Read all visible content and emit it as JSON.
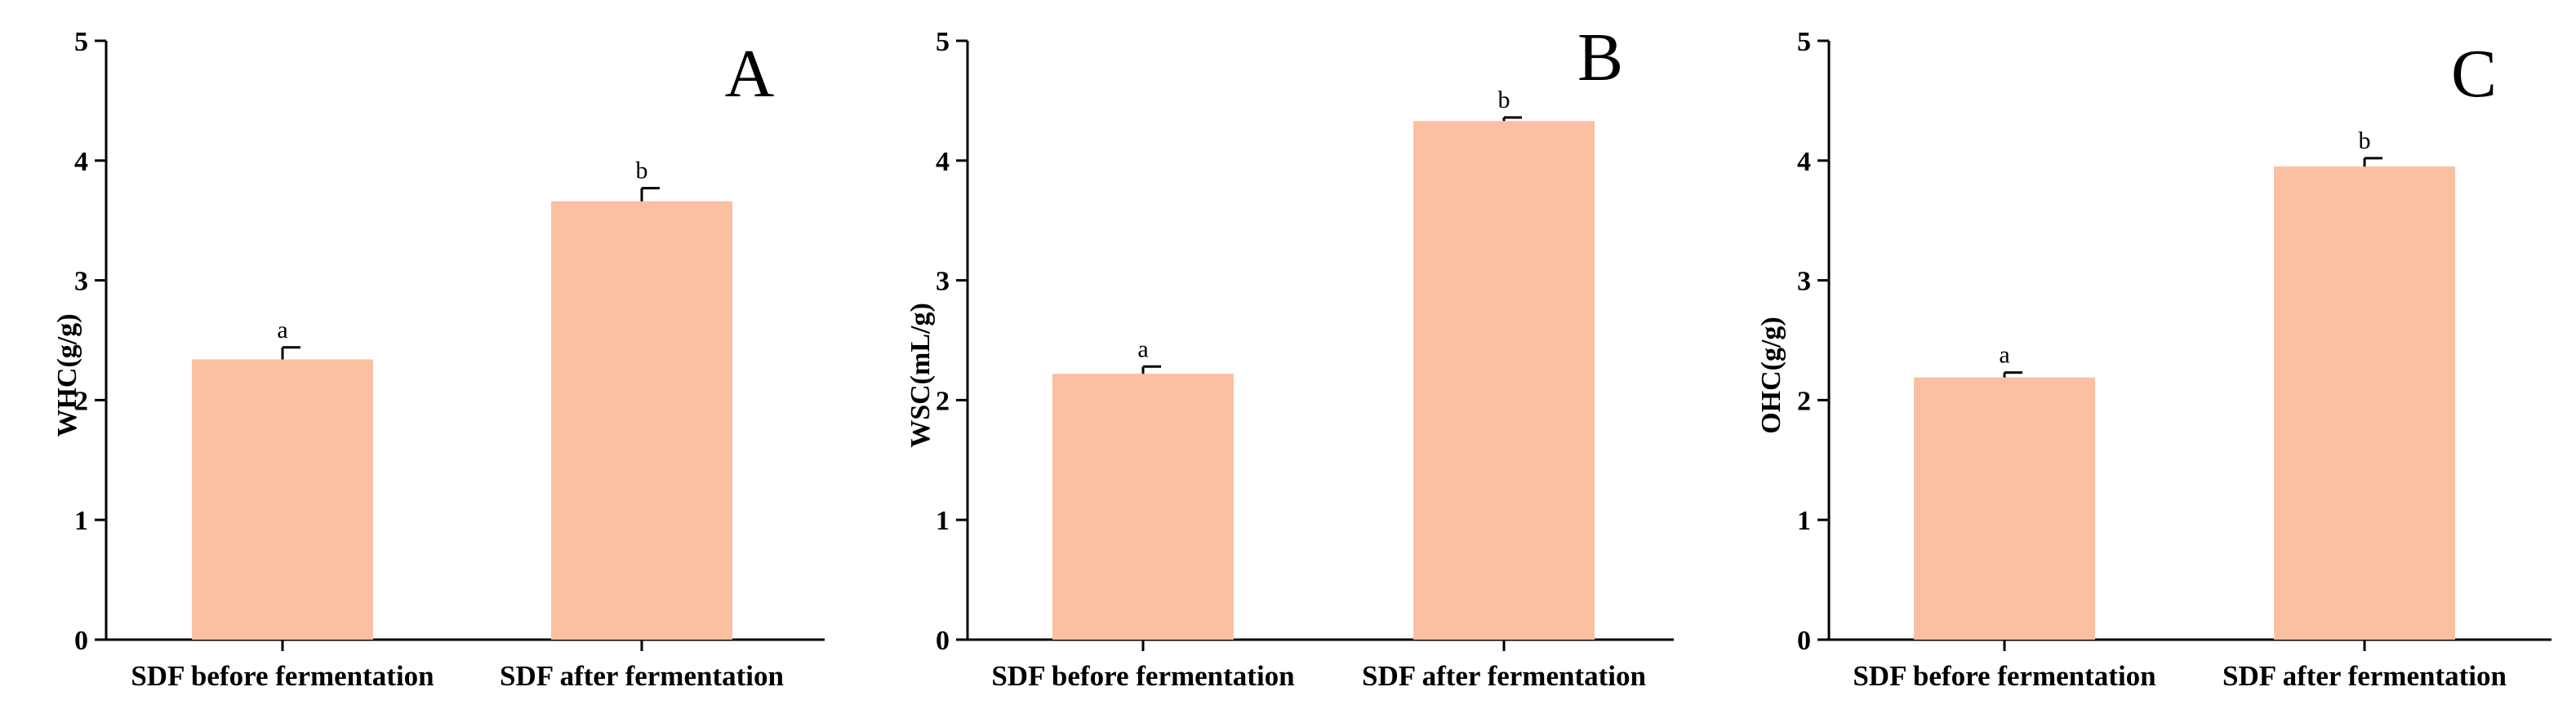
{
  "figure": {
    "bar_color": "#fbbfa2",
    "axis_color": "#000000"
  },
  "chart_data": [
    {
      "type": "bar",
      "panel": "A",
      "ylabel": "WHC(g/g)",
      "xlabel": "",
      "ylim": [
        0,
        5
      ],
      "yticks": [
        "0",
        "1",
        "2",
        "3",
        "4",
        "5"
      ],
      "categories": [
        "SDF before fermentation",
        "SDF after fermentation"
      ],
      "values": [
        2.34,
        3.66
      ],
      "errors": [
        0.1,
        0.11
      ],
      "significance": [
        "a",
        "b"
      ]
    },
    {
      "type": "bar",
      "panel": "B",
      "ylabel": "WSC(mL/g)",
      "xlabel": "",
      "ylim": [
        0,
        5
      ],
      "yticks": [
        "0",
        "1",
        "2",
        "3",
        "4",
        "5"
      ],
      "categories": [
        "SDF before fermentation",
        "SDF after fermentation"
      ],
      "values": [
        2.22,
        4.33
      ],
      "errors": [
        0.06,
        0.03
      ],
      "significance": [
        "a",
        "b"
      ]
    },
    {
      "type": "bar",
      "panel": "C",
      "ylabel": "OHC(g/g)",
      "xlabel": "",
      "ylim": [
        0,
        5
      ],
      "yticks": [
        "0",
        "1",
        "2",
        "3",
        "4",
        "5"
      ],
      "categories": [
        "SDF before fermentation",
        "SDF after fermentation"
      ],
      "values": [
        2.19,
        3.95
      ],
      "errors": [
        0.04,
        0.07
      ],
      "significance": [
        "a",
        "b"
      ]
    }
  ]
}
